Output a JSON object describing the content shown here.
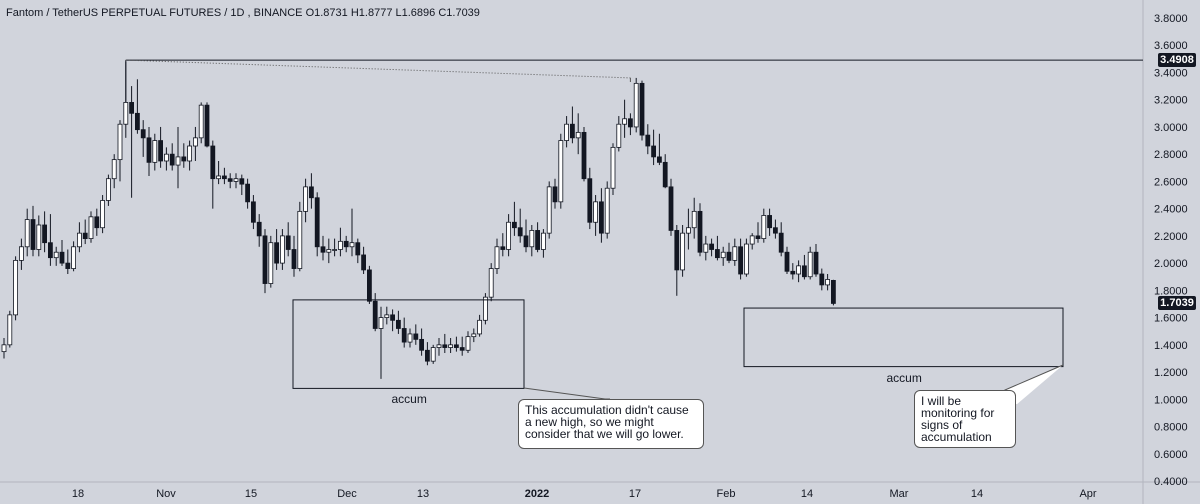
{
  "header": {
    "symbol": "Fantom / TetherUS PERPETUAL FUTURES",
    "interval": "1D",
    "exchange": "BINANCE",
    "open": "O1.8731",
    "high": "H1.8777",
    "low": "L1.6896",
    "close": "C1.7039"
  },
  "chart_data": {
    "type": "candlestick",
    "y_axis": {
      "ticks": [
        "3.8000",
        "3.6000",
        "3.4000",
        "3.2000",
        "3.0000",
        "2.8000",
        "2.6000",
        "2.4000",
        "2.2000",
        "2.0000",
        "1.8000",
        "1.6000",
        "1.4000",
        "1.2000",
        "1.0000",
        "0.8000",
        "0.6000",
        "0.4000"
      ],
      "range": [
        0.3,
        3.9
      ],
      "position": "right"
    },
    "x_axis": {
      "ticks": [
        "18",
        "Nov",
        "15",
        "Dec",
        "13",
        "2022",
        "17",
        "Feb",
        "14",
        "Mar",
        "14",
        "Apr"
      ]
    },
    "price_labels": [
      {
        "label": "3.4908",
        "value": 3.4908
      },
      {
        "label": "1.7039",
        "value": 1.7039
      }
    ],
    "horizontal_line": {
      "value": 3.4908
    },
    "candles": [
      [
        1.35,
        1.45,
        1.3,
        1.4
      ],
      [
        1.4,
        1.65,
        1.38,
        1.62
      ],
      [
        1.62,
        2.05,
        1.58,
        2.02
      ],
      [
        2.02,
        2.18,
        1.95,
        2.12
      ],
      [
        2.12,
        2.4,
        2.05,
        2.32
      ],
      [
        2.32,
        2.42,
        2.05,
        2.1
      ],
      [
        2.1,
        2.35,
        2.05,
        2.28
      ],
      [
        2.28,
        2.38,
        2.08,
        2.15
      ],
      [
        2.15,
        2.36,
        1.98,
        2.04
      ],
      [
        2.04,
        2.12,
        1.98,
        2.08
      ],
      [
        2.08,
        2.17,
        1.98,
        2.0
      ],
      [
        2.0,
        2.1,
        1.92,
        1.96
      ],
      [
        1.96,
        2.16,
        1.94,
        2.12
      ],
      [
        2.12,
        2.3,
        2.08,
        2.22
      ],
      [
        2.22,
        2.32,
        2.14,
        2.18
      ],
      [
        2.18,
        2.38,
        2.15,
        2.34
      ],
      [
        2.34,
        2.4,
        2.2,
        2.26
      ],
      [
        2.26,
        2.5,
        2.22,
        2.46
      ],
      [
        2.46,
        2.65,
        2.42,
        2.62
      ],
      [
        2.62,
        2.8,
        2.55,
        2.76
      ],
      [
        2.76,
        3.05,
        2.6,
        3.02
      ],
      [
        3.02,
        3.48,
        2.92,
        3.18
      ],
      [
        3.18,
        3.3,
        2.48,
        3.1
      ],
      [
        3.1,
        3.35,
        2.95,
        2.98
      ],
      [
        2.98,
        3.05,
        2.78,
        2.92
      ],
      [
        2.92,
        3.0,
        2.64,
        2.74
      ],
      [
        2.74,
        2.95,
        2.68,
        2.9
      ],
      [
        2.9,
        3.0,
        2.7,
        2.75
      ],
      [
        2.75,
        2.85,
        2.68,
        2.8
      ],
      [
        2.8,
        2.88,
        2.68,
        2.72
      ],
      [
        2.72,
        3.0,
        2.55,
        2.78
      ],
      [
        2.78,
        2.88,
        2.7,
        2.75
      ],
      [
        2.75,
        2.9,
        2.68,
        2.86
      ],
      [
        2.86,
        3.0,
        2.75,
        2.92
      ],
      [
        2.92,
        3.18,
        2.88,
        3.16
      ],
      [
        3.16,
        3.18,
        2.85,
        2.86
      ],
      [
        2.86,
        2.9,
        2.4,
        2.62
      ],
      [
        2.62,
        2.75,
        2.58,
        2.64
      ],
      [
        2.64,
        2.7,
        2.58,
        2.62
      ],
      [
        2.62,
        2.66,
        2.55,
        2.6
      ],
      [
        2.6,
        2.66,
        2.55,
        2.62
      ],
      [
        2.62,
        2.65,
        2.5,
        2.58
      ],
      [
        2.58,
        2.62,
        2.4,
        2.45
      ],
      [
        2.45,
        2.5,
        2.25,
        2.3
      ],
      [
        2.3,
        2.36,
        2.12,
        2.2
      ],
      [
        2.2,
        2.25,
        1.78,
        1.85
      ],
      [
        1.85,
        2.2,
        1.82,
        2.15
      ],
      [
        2.15,
        2.25,
        1.95,
        2.0
      ],
      [
        2.0,
        2.25,
        1.95,
        2.2
      ],
      [
        2.2,
        2.3,
        2.05,
        2.1
      ],
      [
        2.1,
        2.2,
        1.9,
        1.96
      ],
      [
        1.96,
        2.45,
        1.94,
        2.38
      ],
      [
        2.38,
        2.62,
        2.3,
        2.56
      ],
      [
        2.56,
        2.66,
        2.4,
        2.48
      ],
      [
        2.48,
        2.52,
        2.05,
        2.12
      ],
      [
        2.12,
        2.2,
        2.02,
        2.08
      ],
      [
        2.08,
        2.18,
        2.0,
        2.1
      ],
      [
        2.1,
        2.18,
        2.05,
        2.1
      ],
      [
        2.1,
        2.26,
        2.05,
        2.16
      ],
      [
        2.16,
        2.2,
        2.08,
        2.12
      ],
      [
        2.12,
        2.4,
        2.05,
        2.15
      ],
      [
        2.15,
        2.18,
        2.0,
        2.06
      ],
      [
        2.06,
        2.12,
        1.92,
        1.95
      ],
      [
        1.95,
        1.98,
        1.7,
        1.72
      ],
      [
        1.72,
        1.78,
        1.5,
        1.52
      ],
      [
        1.52,
        1.68,
        1.15,
        1.6
      ],
      [
        1.6,
        1.68,
        1.55,
        1.62
      ],
      [
        1.62,
        1.66,
        1.5,
        1.58
      ],
      [
        1.58,
        1.65,
        1.48,
        1.52
      ],
      [
        1.52,
        1.6,
        1.38,
        1.42
      ],
      [
        1.42,
        1.52,
        1.38,
        1.48
      ],
      [
        1.48,
        1.55,
        1.4,
        1.44
      ],
      [
        1.44,
        1.52,
        1.32,
        1.36
      ],
      [
        1.36,
        1.42,
        1.25,
        1.28
      ],
      [
        1.28,
        1.4,
        1.26,
        1.38
      ],
      [
        1.38,
        1.45,
        1.32,
        1.4
      ],
      [
        1.4,
        1.48,
        1.34,
        1.38
      ],
      [
        1.38,
        1.45,
        1.34,
        1.4
      ],
      [
        1.4,
        1.46,
        1.35,
        1.38
      ],
      [
        1.38,
        1.46,
        1.32,
        1.36
      ],
      [
        1.36,
        1.5,
        1.34,
        1.46
      ],
      [
        1.46,
        1.52,
        1.42,
        1.48
      ],
      [
        1.48,
        1.62,
        1.46,
        1.58
      ],
      [
        1.58,
        1.78,
        1.55,
        1.75
      ],
      [
        1.75,
        2.0,
        1.72,
        1.96
      ],
      [
        1.96,
        2.18,
        1.92,
        2.12
      ],
      [
        2.12,
        2.22,
        2.05,
        2.1
      ],
      [
        2.1,
        2.36,
        2.05,
        2.3
      ],
      [
        2.3,
        2.45,
        2.2,
        2.26
      ],
      [
        2.26,
        2.4,
        2.15,
        2.2
      ],
      [
        2.2,
        2.32,
        2.08,
        2.12
      ],
      [
        2.12,
        2.28,
        2.05,
        2.24
      ],
      [
        2.24,
        2.3,
        2.08,
        2.1
      ],
      [
        2.1,
        2.25,
        2.04,
        2.22
      ],
      [
        2.22,
        2.6,
        2.18,
        2.56
      ],
      [
        2.56,
        2.62,
        2.4,
        2.45
      ],
      [
        2.45,
        2.95,
        2.4,
        2.9
      ],
      [
        2.9,
        3.08,
        2.85,
        3.02
      ],
      [
        3.02,
        3.15,
        2.88,
        2.92
      ],
      [
        2.92,
        3.1,
        2.8,
        2.96
      ],
      [
        2.96,
        3.0,
        2.6,
        2.62
      ],
      [
        2.62,
        2.7,
        2.25,
        2.3
      ],
      [
        2.3,
        2.5,
        2.2,
        2.45
      ],
      [
        2.45,
        2.55,
        2.15,
        2.22
      ],
      [
        2.22,
        2.6,
        2.18,
        2.55
      ],
      [
        2.55,
        2.88,
        2.5,
        2.85
      ],
      [
        2.85,
        3.08,
        2.82,
        3.02
      ],
      [
        3.02,
        3.2,
        2.92,
        3.06
      ],
      [
        3.06,
        3.1,
        2.94,
        3.0
      ],
      [
        3.0,
        3.36,
        2.96,
        3.32
      ],
      [
        3.32,
        3.34,
        2.9,
        2.94
      ],
      [
        2.94,
        3.02,
        2.8,
        2.86
      ],
      [
        2.86,
        2.98,
        2.72,
        2.78
      ],
      [
        2.78,
        2.95,
        2.72,
        2.74
      ],
      [
        2.74,
        2.8,
        2.55,
        2.56
      ],
      [
        2.56,
        2.62,
        2.2,
        2.24
      ],
      [
        2.24,
        2.28,
        1.76,
        1.95
      ],
      [
        1.95,
        2.28,
        1.9,
        2.22
      ],
      [
        2.22,
        2.4,
        2.1,
        2.26
      ],
      [
        2.26,
        2.48,
        2.18,
        2.38
      ],
      [
        2.38,
        2.44,
        2.05,
        2.08
      ],
      [
        2.08,
        2.2,
        2.02,
        2.14
      ],
      [
        2.14,
        2.18,
        2.05,
        2.1
      ],
      [
        2.1,
        2.2,
        2.02,
        2.04
      ],
      [
        2.04,
        2.12,
        1.98,
        2.08
      ],
      [
        2.08,
        2.15,
        2.0,
        2.02
      ],
      [
        2.02,
        2.18,
        1.98,
        2.12
      ],
      [
        2.12,
        2.18,
        1.88,
        1.92
      ],
      [
        1.92,
        2.18,
        1.9,
        2.14
      ],
      [
        2.14,
        2.22,
        2.1,
        2.2
      ],
      [
        2.2,
        2.3,
        2.15,
        2.18
      ],
      [
        2.18,
        2.4,
        2.15,
        2.35
      ],
      [
        2.35,
        2.4,
        2.2,
        2.26
      ],
      [
        2.26,
        2.32,
        2.18,
        2.22
      ],
      [
        2.22,
        2.3,
        2.05,
        2.08
      ],
      [
        2.08,
        2.12,
        1.92,
        1.94
      ],
      [
        1.94,
        2.0,
        1.88,
        1.92
      ],
      [
        1.92,
        2.02,
        1.86,
        1.98
      ],
      [
        1.98,
        2.06,
        1.88,
        1.9
      ],
      [
        1.9,
        2.12,
        1.88,
        2.08
      ],
      [
        2.08,
        2.14,
        1.9,
        1.92
      ],
      [
        1.92,
        1.96,
        1.8,
        1.84
      ],
      [
        1.84,
        1.92,
        1.8,
        1.88
      ],
      [
        1.8731,
        1.8777,
        1.6896,
        1.7039
      ]
    ],
    "rectangles": [
      {
        "x_start_index": 64,
        "x_end_index": 114,
        "y_top": 1.73,
        "y_bottom": 1.08
      },
      {
        "x_start_index": 146,
        "x_end_index": 195,
        "y_top": 1.67,
        "y_bottom": 1.24
      }
    ],
    "annotations": [
      {
        "text": "accum",
        "box": 1
      },
      {
        "text": "accum",
        "box": 2
      }
    ]
  },
  "notes": {
    "note1": "This accumulation didn't cause a new high, so we might consider that we will go lower.",
    "note2": "I will be monitoring for signs of accumulation"
  },
  "colors": {
    "background": "#d1d4dc",
    "up": "#ffffff",
    "down": "#131722",
    "grid": "#c7cad2",
    "text": "#131722"
  }
}
